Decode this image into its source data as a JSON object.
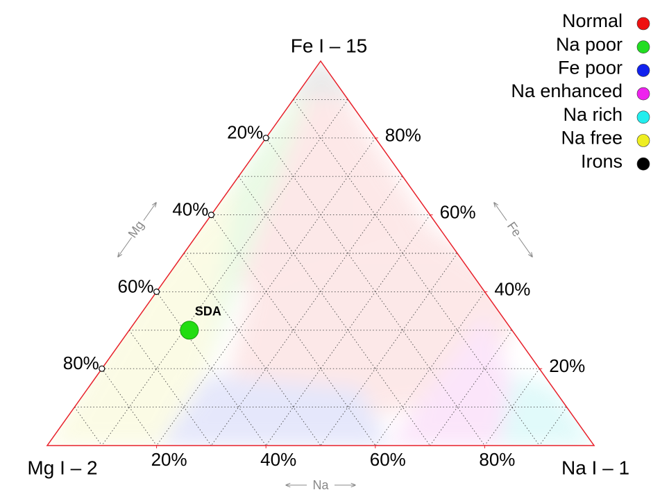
{
  "chart_data": {
    "type": "ternary",
    "corners": {
      "top": "Fe I – 15",
      "left": "Mg I – 2",
      "right": "Na I – 1"
    },
    "axis_names": {
      "fe": "Fe",
      "mg": "Mg",
      "na": "Na"
    },
    "mg_ticks": [
      {
        "value": 20,
        "label": "20%"
      },
      {
        "value": 40,
        "label": "40%"
      },
      {
        "value": 60,
        "label": "60%"
      },
      {
        "value": 80,
        "label": "80%"
      }
    ],
    "fe_ticks": [
      {
        "value": 20,
        "label": "20%"
      },
      {
        "value": 40,
        "label": "40%"
      },
      {
        "value": 60,
        "label": "60%"
      },
      {
        "value": 80,
        "label": "80%"
      }
    ],
    "na_ticks": [
      {
        "value": 20,
        "label": "20%"
      },
      {
        "value": 40,
        "label": "40%"
      },
      {
        "value": 60,
        "label": "60%"
      },
      {
        "value": 80,
        "label": "80%"
      }
    ],
    "grid": [
      10,
      20,
      30,
      40,
      50,
      60,
      70,
      80,
      90
    ],
    "edge_color": "#e8202a",
    "points": [
      {
        "name": "SDA",
        "color": "#22dd11",
        "fe": 30,
        "mg": 59,
        "na": 11
      }
    ],
    "legend": [
      {
        "name": "Normal",
        "color": "#ee1111"
      },
      {
        "name": "Na poor",
        "color": "#22dd22"
      },
      {
        "name": "Fe poor",
        "color": "#1122ee"
      },
      {
        "name": "Na enhanced",
        "color": "#ee22ee"
      },
      {
        "name": "Na rich",
        "color": "#22eeee"
      },
      {
        "name": "Na free",
        "color": "#eeee22"
      },
      {
        "name": "Irons",
        "color": "#000000"
      }
    ]
  }
}
